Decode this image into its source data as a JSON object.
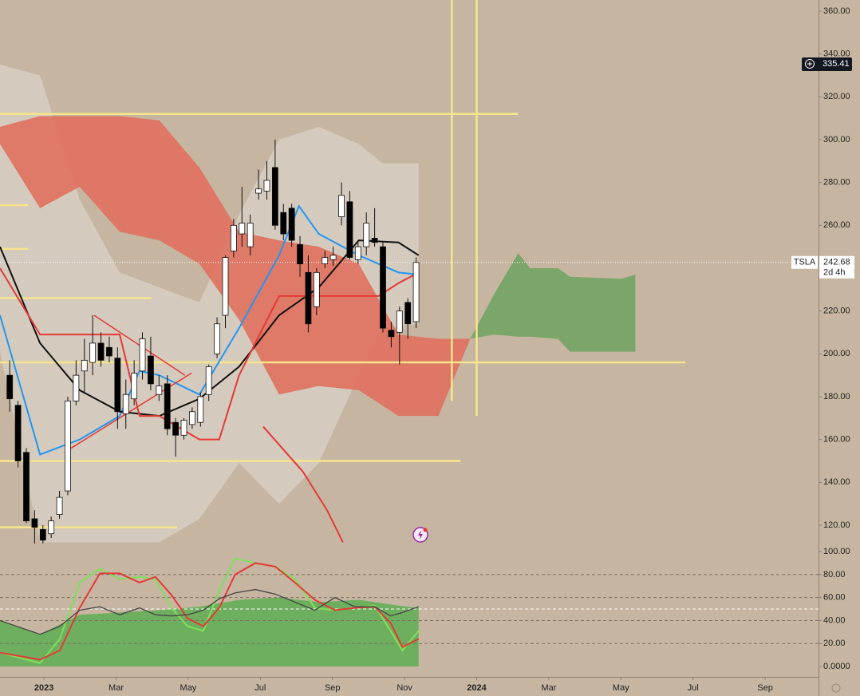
{
  "chart_data": {
    "type": "candlestick",
    "x": [
      -0.95,
      -0.72,
      -0.49,
      -0.26,
      -0.03,
      0.2,
      0.43,
      0.66,
      0.89,
      1.12,
      1.35,
      1.58,
      1.81,
      2.04,
      2.27,
      2.5,
      2.73,
      2.96,
      3.19,
      3.42,
      3.65,
      3.88,
      4.11,
      4.34,
      4.57,
      4.8,
      5.03,
      5.26,
      5.49,
      5.72,
      5.95,
      6.18,
      6.41,
      6.64,
      6.87,
      7.1,
      7.33,
      7.56,
      7.79,
      8.02,
      8.25,
      8.48,
      8.71,
      8.94,
      9.17,
      9.4,
      9.63,
      9.86,
      10.09,
      10.32
    ],
    "open": [
      190,
      176,
      154,
      123,
      118,
      116,
      125,
      136,
      178,
      192,
      196,
      205,
      203,
      198,
      172,
      179,
      192,
      199,
      181,
      186,
      168,
      162,
      167,
      168,
      181,
      200,
      218,
      248,
      256,
      250,
      275,
      276,
      287,
      266,
      268,
      251,
      238,
      222,
      242,
      244,
      264,
      271,
      244,
      250,
      254,
      250,
      211,
      210,
      224,
      215
    ],
    "high": [
      197,
      178,
      156,
      127,
      120,
      124,
      136,
      180,
      197,
      207,
      218,
      210,
      208,
      203,
      188,
      197,
      210,
      208,
      190,
      190,
      170,
      170,
      175,
      182,
      195,
      217,
      246,
      263,
      278,
      265,
      286,
      290,
      300,
      270,
      270,
      255,
      246,
      240,
      248,
      250,
      280,
      276,
      252,
      266,
      268,
      252,
      215,
      222,
      226,
      245
    ],
    "low": [
      173,
      147,
      121,
      109,
      108,
      114,
      123,
      134,
      176,
      182,
      190,
      194,
      196,
      165,
      165,
      176,
      188,
      183,
      178,
      162,
      152,
      160,
      165,
      166,
      178,
      198,
      212,
      245,
      250,
      246,
      272,
      272,
      258,
      253,
      250,
      236,
      210,
      218,
      240,
      241,
      260,
      244,
      242,
      246,
      250,
      210,
      203,
      195,
      207,
      212
    ],
    "close": [
      179,
      150,
      122,
      119,
      113,
      122,
      133,
      178,
      190,
      197,
      205,
      197,
      199,
      173,
      181,
      191,
      207,
      186,
      185,
      165,
      162,
      169,
      173,
      180,
      194,
      214,
      245,
      260,
      261,
      261,
      277,
      281,
      260,
      256,
      253,
      242,
      214,
      238,
      245,
      246,
      274,
      245,
      250,
      261,
      252,
      212,
      208,
      220,
      214,
      242.68
    ],
    "up_color": "#ffffff",
    "down_color": "#000000",
    "xlim": [
      -1.22,
      21.48
    ],
    "xticks": [
      {
        "value": 0,
        "label": "2023"
      },
      {
        "value": 2,
        "label": "Mar"
      },
      {
        "value": 4,
        "label": "May"
      },
      {
        "value": 6,
        "label": "Jul"
      },
      {
        "value": 8,
        "label": "Sep"
      },
      {
        "value": 10,
        "label": "Nov"
      },
      {
        "value": 12,
        "label": "2024"
      },
      {
        "value": 14,
        "label": "Mar"
      },
      {
        "value": 16,
        "label": "May"
      },
      {
        "value": 18,
        "label": "Jul"
      },
      {
        "value": 20,
        "label": "Sep"
      }
    ],
    "ylim": [
      111.8,
      365.2
    ],
    "yticks": [
      {
        "value": 360,
        "label": "360.00"
      },
      {
        "value": 340,
        "label": "340.00"
      },
      {
        "value": 320,
        "label": "320.00"
      },
      {
        "value": 300,
        "label": "300.00"
      },
      {
        "value": 280,
        "label": "280.00"
      },
      {
        "value": 260,
        "label": "260.00"
      },
      {
        "value": 240,
        "label": "240.00"
      },
      {
        "value": 220,
        "label": "220.00"
      },
      {
        "value": 200,
        "label": "200.00"
      },
      {
        "value": 180,
        "label": "180.00"
      },
      {
        "value": 160,
        "label": "160.00"
      },
      {
        "value": 140,
        "label": "140.00"
      },
      {
        "value": 120,
        "label": "120.00"
      }
    ],
    "bands": [
      {
        "color": "#d6cec2",
        "x": [
          -1.22,
          -0.11,
          0.99,
          2.1,
          3.2,
          4.31,
          5.41,
          6.52,
          7.62,
          8.73,
          9.39,
          10.39
        ],
        "upper": [
          335,
          330,
          272,
          238,
          231,
          224,
          265,
          300,
          306,
          298,
          289,
          289
        ],
        "lower": [
          201,
          112,
          112,
          112,
          112,
          123,
          149,
          130,
          149,
          190,
          212,
          214
        ]
      },
      {
        "color": "#e0705e",
        "x": [
          -1.22,
          -0.11,
          0.99,
          2.1,
          3.2,
          4.31,
          5.41,
          6.52,
          7.62,
          8.73,
          9.83,
          10.94,
          11.82
        ],
        "upper": [
          306,
          311,
          311,
          311,
          309,
          287,
          257,
          253,
          250,
          242,
          209,
          207,
          207
        ],
        "lower": [
          298,
          268,
          278,
          257,
          253,
          242,
          216,
          181,
          185,
          183,
          171,
          171,
          207
        ]
      },
      {
        "color": "#72a463",
        "x": [
          11.82,
          12.49,
          13.15,
          13.48,
          14.25,
          14.59,
          16.02,
          16.4
        ],
        "upper": [
          207,
          228,
          247,
          240,
          240,
          236,
          235,
          237
        ],
        "lower": [
          207,
          209,
          208,
          208,
          207,
          201,
          201,
          201
        ]
      }
    ],
    "lines": [
      {
        "color": "#2196f3",
        "x": [
          -1.22,
          -0.11,
          0.99,
          2.1,
          2.65,
          3.2,
          4.31,
          5.41,
          6.52,
          7.07,
          7.62,
          8.73,
          9.83,
          10.39
        ],
        "values": [
          218,
          153,
          160,
          171,
          192,
          190,
          181,
          212,
          246,
          269,
          256,
          246,
          238,
          237
        ]
      },
      {
        "color": "#111111",
        "x": [
          -1.22,
          -0.11,
          0.99,
          2.1,
          3.2,
          4.31,
          5.41,
          6.52,
          7.62,
          8.73,
          9.83,
          10.39
        ],
        "values": [
          250,
          205,
          183,
          173,
          171,
          179,
          194,
          218,
          231,
          253,
          252,
          246
        ]
      },
      {
        "color": "#e53935",
        "x": [
          -1.22,
          -0.11,
          0.99,
          2.1,
          2.65,
          3.2,
          4.31,
          4.86,
          5.41,
          6.52,
          7.62,
          9.28,
          9.83,
          10.39
        ],
        "values": [
          240,
          209,
          209,
          209,
          171,
          171,
          160,
          160,
          190,
          227,
          227,
          227,
          233,
          238
        ]
      },
      {
        "color": "#e53935",
        "x": [
          6.08,
          7.18,
          7.85,
          8.29
        ],
        "values": [
          166,
          145,
          127,
          112
        ]
      }
    ],
    "trendlines": [
      {
        "color": "#e53935",
        "x": [
          1.39,
          3.91
        ],
        "values": [
          218,
          190
        ]
      },
      {
        "color": "#e53935",
        "x": [
          0.66,
          4.09
        ],
        "values": [
          155,
          191
        ]
      }
    ],
    "levels": [
      {
        "value": 312,
        "x_end": 13.15
      },
      {
        "value": 269.4,
        "x_end": -0.44
      },
      {
        "value": 249,
        "x_end": -0.44
      },
      {
        "value": 226,
        "x_end": 2.98
      },
      {
        "value": 196,
        "x_end": 17.79
      },
      {
        "value": 150,
        "x_end": 11.56
      },
      {
        "value": 119,
        "x_end": 3.69
      }
    ],
    "level_color": "#f7e58c",
    "vlines": [
      {
        "x": 11.31,
        "from": 178
      },
      {
        "x": 12.0,
        "from": 171
      }
    ],
    "symbol": "TSLA",
    "last_price": 242.68,
    "countdown": "2d 4h",
    "marker_price": 335.41,
    "oscillator": {
      "ylim": [
        -9,
        104.9
      ],
      "yticks": [
        {
          "value": 100,
          "label": "100.00"
        },
        {
          "value": 80,
          "label": "80.00"
        },
        {
          "value": 60,
          "label": "60.00"
        },
        {
          "value": 40,
          "label": "40.00"
        },
        {
          "value": 20,
          "label": "20.00"
        },
        {
          "value": 0,
          "label": "0.0000"
        }
      ],
      "levels": [
        80,
        60,
        40,
        20
      ],
      "mid_level": 50,
      "area": {
        "color": "#6daf5e",
        "x": [
          -1.22,
          -0.11,
          0.99,
          2.1,
          3.2,
          4.31,
          5.41,
          6.52,
          7.62,
          8.73,
          9.83,
          10.39
        ],
        "values": [
          40,
          28,
          45,
          47,
          49,
          52,
          58,
          60,
          56,
          58,
          53,
          51
        ]
      },
      "lines": [
        {
          "color": "#7ee05a",
          "x": [
            -1.22,
            -0.11,
            0.44,
            0.99,
            1.55,
            2.1,
            2.65,
            3.09,
            3.54,
            3.98,
            4.42,
            4.86,
            5.3,
            5.86,
            6.41,
            6.96,
            7.51,
            8.07,
            8.62,
            9.17,
            9.61,
            9.94,
            10.39
          ],
          "values": [
            12,
            3,
            24,
            73,
            85,
            76,
            78,
            76,
            51,
            35,
            31,
            66,
            94,
            90,
            87,
            76,
            51,
            49,
            51,
            53,
            31,
            14,
            31
          ]
        },
        {
          "color": "#e53935",
          "x": [
            -1.22,
            -0.11,
            0.44,
            0.99,
            1.55,
            2.1,
            2.65,
            3.09,
            3.54,
            3.98,
            4.42,
            4.86,
            5.3,
            5.86,
            6.41,
            6.96,
            7.51,
            8.07,
            8.62,
            9.17,
            9.61,
            9.94,
            10.39
          ],
          "values": [
            12,
            6,
            14,
            51,
            81,
            81,
            73,
            78,
            62,
            42,
            35,
            51,
            80,
            90,
            87,
            73,
            58,
            49,
            51,
            52,
            38,
            17,
            24
          ]
        },
        {
          "color": "#444444",
          "x": [
            -1.22,
            -0.11,
            0.44,
            0.99,
            1.55,
            2.1,
            2.65,
            3.09,
            3.54,
            3.98,
            4.42,
            4.86,
            5.3,
            5.86,
            6.41,
            6.96,
            7.51,
            8.07,
            8.62,
            9.17,
            9.61,
            9.94,
            10.39
          ],
          "values": [
            40,
            28,
            35,
            49,
            52,
            45,
            51,
            45,
            44,
            45,
            49,
            59,
            64,
            67,
            63,
            56,
            49,
            60,
            52,
            52,
            44,
            47,
            52
          ]
        }
      ]
    }
  }
}
